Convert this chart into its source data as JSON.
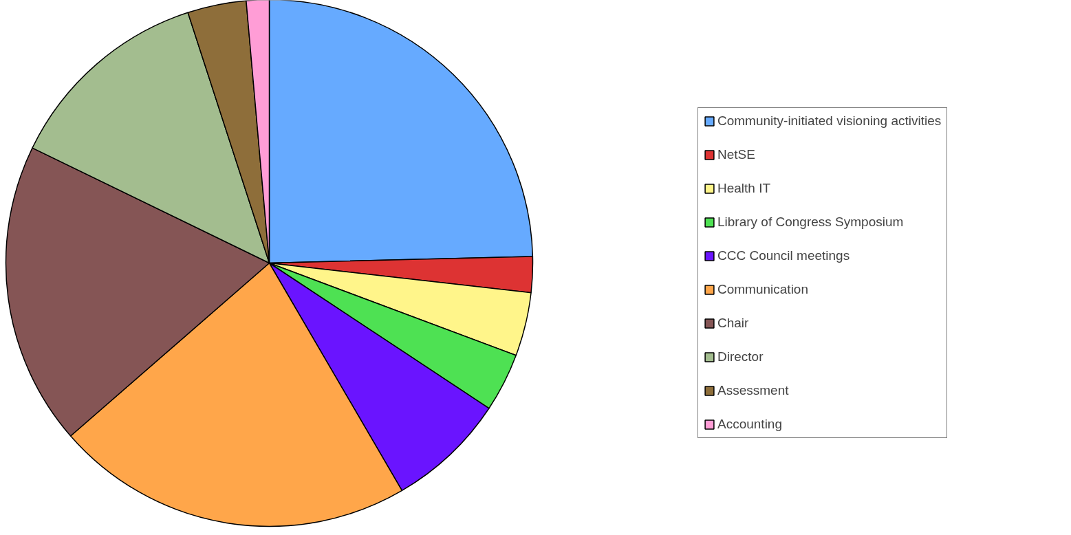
{
  "chart_data": {
    "type": "pie",
    "categories": [
      "Community-initiated visioning activities",
      "NetSE",
      "Health IT",
      "Library of Congress Symposium",
      "CCC Council meetings",
      "Communication",
      "Chair",
      "Director",
      "Assessment",
      "Accounting"
    ],
    "values": [
      24.6,
      2.2,
      3.9,
      3.6,
      7.3,
      22.0,
      18.6,
      12.8,
      3.6,
      1.4
    ],
    "colors": [
      "#66aaff",
      "#dd3333",
      "#fff58a",
      "#4ee153",
      "#6a14ff",
      "#ffa64a",
      "#855555",
      "#a3bd8f",
      "#8e6e3a",
      "#ff9dd6"
    ],
    "legend": "right"
  }
}
